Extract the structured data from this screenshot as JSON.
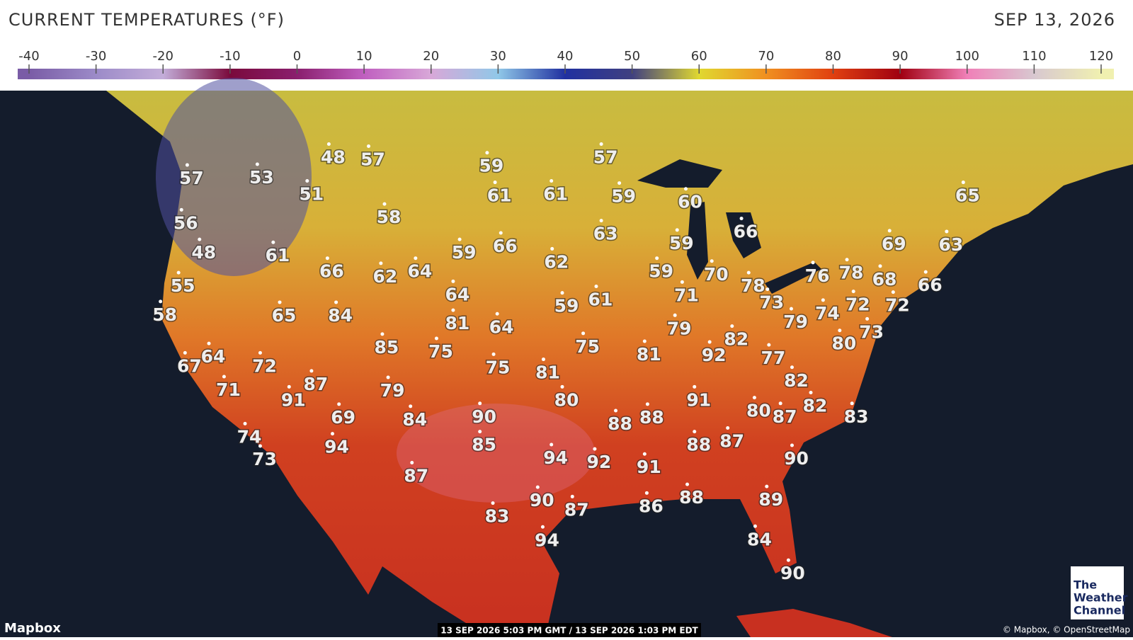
{
  "header": {
    "title": "CURRENT TEMPERATURES (°F)",
    "date": "SEP 13, 2026"
  },
  "scale": {
    "range": [
      -40,
      120
    ],
    "ticks": [
      -40,
      -30,
      -20,
      -10,
      0,
      10,
      20,
      30,
      40,
      50,
      60,
      70,
      80,
      90,
      100,
      110,
      120
    ],
    "colors": [
      "#7a5ca6",
      "#9c8bc8",
      "#c3add9",
      "#7a0a3c",
      "#8a1f6e",
      "#c060c0",
      "#d8a8d8",
      "#90c8e8",
      "#2030a0",
      "#404080",
      "#e0d830",
      "#f09020",
      "#e04010",
      "#a00010",
      "#f080b8",
      "#d8c8d0",
      "#f0f0b0"
    ]
  },
  "temperatures": [
    57,
    53,
    48,
    57,
    51,
    59,
    57,
    61,
    61,
    59,
    60,
    65,
    56,
    58,
    63,
    66,
    69,
    63,
    48,
    61,
    59,
    66,
    62,
    59,
    66,
    62,
    64,
    59,
    70,
    78,
    76,
    78,
    68,
    66,
    55,
    64,
    71,
    73,
    72,
    72,
    58,
    65,
    84,
    59,
    61,
    81,
    64,
    79,
    79,
    74,
    73,
    82,
    80,
    85,
    75,
    75,
    81,
    92,
    77,
    67,
    64,
    72,
    75,
    81,
    82,
    87,
    71,
    91,
    79,
    80,
    91,
    80,
    87,
    82,
    83,
    69,
    84,
    90,
    88,
    88,
    74,
    94,
    85,
    88,
    87,
    73,
    94,
    92,
    91,
    90,
    87,
    90,
    87,
    86,
    88,
    89,
    83,
    94,
    84,
    90
  ],
  "footer": {
    "provider": "Mapbox",
    "timestamp": "13 SEP 2026 5:03 PM GMT / 13 SEP 2026 1:03 PM EDT",
    "attribution": "© Mapbox, © OpenStreetMap",
    "logo": [
      "The",
      "Weather",
      "Channel"
    ]
  }
}
